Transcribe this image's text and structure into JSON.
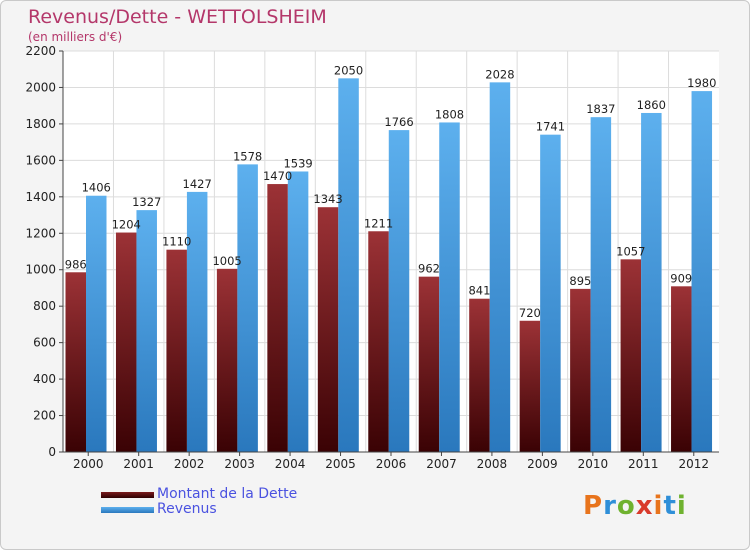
{
  "title": "Revenus/Dette - WETTOLSHEIM",
  "subtitle": "(en milliers d'€)",
  "legend": {
    "debt_label": "Montant de la Dette",
    "revenue_label": "Revenus"
  },
  "logo": {
    "text": "Proxiti",
    "letter_colors": [
      "#e8741c",
      "#2f8fd8",
      "#6fb22f",
      "#d93a2b",
      "#e8741c",
      "#2f8fd8",
      "#6fb22f"
    ]
  },
  "colors": {
    "debt": "#8a1f22",
    "debt_dark": "#3a0204",
    "revenue": "#5aa8e6",
    "revenue_dark": "#2d7ec2",
    "title": "#b4376a",
    "legend_text": "#4a52e0"
  },
  "chart_data": {
    "type": "bar",
    "title": "Revenus/Dette - WETTOLSHEIM",
    "subtitle": "(en milliers d'€)",
    "categories": [
      "2000",
      "2001",
      "2002",
      "2003",
      "2004",
      "2005",
      "2006",
      "2007",
      "2008",
      "2009",
      "2010",
      "2011",
      "2012"
    ],
    "series": [
      {
        "name": "Montant de la Dette",
        "values": [
          986,
          1204,
          1110,
          1005,
          1470,
          1343,
          1211,
          962,
          841,
          720,
          895,
          1057,
          909
        ],
        "labels": [
          "986",
          "1204",
          "1110",
          "1005",
          "1470",
          "1343",
          "1211",
          "962",
          "841",
          "720",
          "895",
          "1057",
          "909"
        ]
      },
      {
        "name": "Revenus",
        "values": [
          1406,
          1327,
          1427,
          1578,
          1539,
          2050,
          1766,
          1808,
          2028,
          1741,
          1837,
          1860,
          1980
        ],
        "labels": [
          "1406",
          "1327",
          "1427",
          "1578",
          "1539",
          "2050",
          "1766",
          "1808",
          "2028",
          "1741",
          "1837",
          "1860",
          "1980"
        ]
      }
    ],
    "ylim": [
      0,
      2200
    ],
    "yticks": [
      0,
      200,
      400,
      600,
      800,
      1000,
      1200,
      1400,
      1600,
      1800,
      2000,
      2200
    ],
    "grid": true,
    "legend_position": "bottom-left"
  }
}
